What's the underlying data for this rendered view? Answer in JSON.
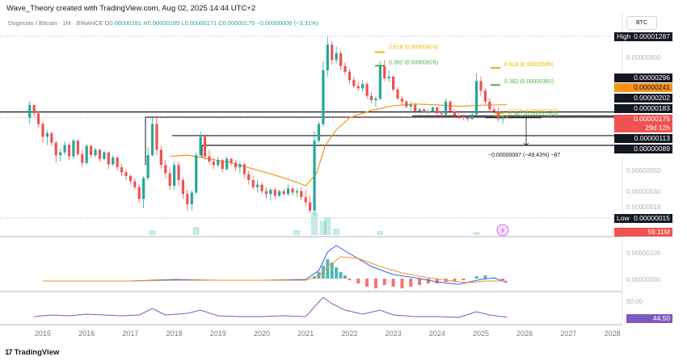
{
  "header": {
    "attribution": "Wave_Theory created with TradingView.com, Aug 02, 2025 14:44 UTC+2",
    "symbol": "Dogecoin / Bitcoin · 1M · BINANCE",
    "ohlc": [
      {
        "k": "O",
        "v": "0.00000181"
      },
      {
        "k": "H",
        "v": "0.00000185"
      },
      {
        "k": "L",
        "v": "0.00000171"
      },
      {
        "k": "C",
        "v": "0.00000175"
      }
    ],
    "change": "−0.00000006 (−3.31%)"
  },
  "currency_button": "BTC",
  "footer_logo": "TradingView",
  "colors": {
    "up": "#26a69a",
    "down": "#ef5350",
    "ema": "#f7931a",
    "macd": "#2962ff",
    "rsi": "#7e57c2",
    "fib_gold": "#f0b400",
    "fib_green": "#4caf50"
  },
  "chart_data": {
    "type": "candlestick",
    "title": "Dogecoin / Bitcoin · 1M · BINANCE",
    "scale": "log",
    "price_axis_ticks": [
      "0.00000800",
      "0.00000050",
      "0.00000030",
      "0.00000018"
    ],
    "x_ticks": [
      "2015",
      "2016",
      "2017",
      "2018",
      "2019",
      "2020",
      "2021",
      "2022",
      "2023",
      "2024",
      "2025",
      "2026",
      "2027",
      "2028"
    ],
    "price_tags": [
      {
        "label": "High",
        "value": "0.00001287",
        "style": "black"
      },
      {
        "value": "0.00000296",
        "style": "black"
      },
      {
        "value": "0.00000241",
        "style": "orange"
      },
      {
        "value": "0.00000202",
        "style": "black"
      },
      {
        "value": "0.00000183",
        "style": "black"
      },
      {
        "value": "0.00000175",
        "style": "red"
      },
      {
        "value": "29d 12h",
        "style": "red"
      },
      {
        "value": "0.00000113",
        "style": "black"
      },
      {
        "value": "0.00000089",
        "style": "black"
      },
      {
        "label": "Low",
        "value": "0.00000015",
        "style": "black"
      }
    ],
    "fib_labels": [
      {
        "text": "0.618 (0.00000874)",
        "color": "gold"
      },
      {
        "text": "0.382 (0.00000626)",
        "color": "green"
      },
      {
        "text": "0.618 (0.00000595)",
        "color": "gold"
      },
      {
        "text": "0.382 (0.00000391)",
        "color": "green"
      },
      {
        "text": "0.618 (0.00000197)",
        "color": "gold"
      },
      {
        "text": "0.382 (0.00000183)",
        "color": "green"
      }
    ],
    "measure_label": "−0.00000087 (−49.43%) −87",
    "horizontal_levels": [
      2.02e-06,
      1.83e-06,
      1.13e-06,
      8.9e-07
    ],
    "ema_value": 2.41e-06,
    "candles": [
      [
        2014.7,
        1.75e-06,
        2.62e-06,
        1.5e-06,
        2.4e-06
      ],
      [
        2014.8,
        2.4e-06,
        2.4e-06,
        1.8e-06,
        1.95e-06
      ],
      [
        2014.9,
        1.95e-06,
        2.05e-06,
        1.4e-06,
        1.5e-06
      ],
      [
        2015.0,
        1.5e-06,
        1.6e-06,
        9.5e-07,
        1.1e-06
      ],
      [
        2015.1,
        1.1e-06,
        1.3e-06,
        9e-07,
        1.2e-06
      ],
      [
        2015.2,
        1.2e-06,
        1.25e-06,
        8.8e-07,
        9.5e-07
      ],
      [
        2015.3,
        9.5e-07,
        1e-06,
        5.8e-07,
        7e-07
      ],
      [
        2015.4,
        7e-07,
        8.2e-07,
        6e-07,
        7.5e-07
      ],
      [
        2015.5,
        7.5e-07,
        9.8e-07,
        7e-07,
        9e-07
      ],
      [
        2015.6,
        9e-07,
        9.5e-07,
        6.2e-07,
        6.8e-07
      ],
      [
        2015.7,
        6.8e-07,
        1.05e-06,
        6.4e-07,
        1e-06
      ],
      [
        2015.8,
        1e-06,
        1.02e-06,
        6.8e-07,
        7.2e-07
      ],
      [
        2015.9,
        7.2e-07,
        8e-07,
        5.2e-07,
        5.8e-07
      ],
      [
        2016.0,
        5.8e-07,
        9.2e-07,
        5.5e-07,
        8.8e-07
      ],
      [
        2016.1,
        8.8e-07,
        9e-07,
        6.5e-07,
        7e-07
      ],
      [
        2016.2,
        7e-07,
        8.5e-07,
        6.6e-07,
        8e-07
      ],
      [
        2016.3,
        8e-07,
        8.2e-07,
        6e-07,
        6.4e-07
      ],
      [
        2016.4,
        6.4e-07,
        7.8e-07,
        6.2e-07,
        7.5e-07
      ],
      [
        2016.5,
        7.5e-07,
        7.6e-07,
        5e-07,
        5.6e-07
      ],
      [
        2016.6,
        5.6e-07,
        7e-07,
        5.4e-07,
        6.6e-07
      ],
      [
        2016.7,
        6.6e-07,
        6.8e-07,
        4.8e-07,
        5.2e-07
      ],
      [
        2016.8,
        5.2e-07,
        5.6e-07,
        4.2e-07,
        4.6e-07
      ],
      [
        2016.9,
        4.6e-07,
        5e-07,
        3.8e-07,
        4.2e-07
      ],
      [
        2017.0,
        4.2e-07,
        4.4e-07,
        3.4e-07,
        3.7e-07
      ],
      [
        2017.1,
        3.7e-07,
        4e-07,
        3e-07,
        3.2e-07
      ],
      [
        2017.2,
        3.2e-07,
        3.4e-07,
        2.2e-07,
        2.4e-07
      ],
      [
        2017.3,
        2.4e-07,
        4.2e-07,
        1.9e-07,
        4e-07
      ],
      [
        2017.4,
        4e-07,
        8.5e-07,
        3.8e-07,
        7e-07
      ],
      [
        2017.5,
        7e-07,
        1.75e-06,
        6.8e-07,
        1.5e-06
      ],
      [
        2017.6,
        1.5e-06,
        1.82e-06,
        7e-07,
        8e-07
      ],
      [
        2017.7,
        8e-07,
        8.8e-07,
        5e-07,
        5.5e-07
      ],
      [
        2017.8,
        5.5e-07,
        6.2e-07,
        4e-07,
        4.5e-07
      ],
      [
        2017.9,
        4.5e-07,
        5e-07,
        3e-07,
        3.3e-07
      ],
      [
        2018.0,
        3.3e-07,
        6e-07,
        3e-07,
        5.5e-07
      ],
      [
        2018.1,
        5.5e-07,
        6e-07,
        3.3e-07,
        3.8e-07
      ],
      [
        2018.2,
        3.8e-07,
        4e-07,
        2.4e-07,
        2.7e-07
      ],
      [
        2018.3,
        2.7e-07,
        3e-07,
        1.8e-07,
        2.1e-07
      ],
      [
        2018.4,
        2.1e-07,
        3e-07,
        1.8e-07,
        2.8e-07
      ],
      [
        2018.5,
        2.8e-07,
        7.5e-07,
        2.7e-07,
        7e-07
      ],
      [
        2018.6,
        7e-07,
        1.25e-06,
        6.8e-07,
        1.1e-06
      ],
      [
        2018.7,
        1.1e-06,
        1.15e-06,
        6.3e-07,
        6.8e-07
      ],
      [
        2018.8,
        6.8e-07,
        8e-07,
        5.5e-07,
        6e-07
      ],
      [
        2018.9,
        6e-07,
        6.5e-07,
        5e-07,
        5.5e-07
      ],
      [
        2019.0,
        5.5e-07,
        6.8e-07,
        5.2e-07,
        6.2e-07
      ],
      [
        2019.1,
        6.2e-07,
        6.4e-07,
        4.6e-07,
        5e-07
      ],
      [
        2019.2,
        5e-07,
        6.8e-07,
        4.8e-07,
        6.4e-07
      ],
      [
        2019.3,
        6.4e-07,
        6.6e-07,
        5.4e-07,
        5.8e-07
      ],
      [
        2019.4,
        5.8e-07,
        6.2e-07,
        4.8e-07,
        5.2e-07
      ],
      [
        2019.5,
        5.2e-07,
        6e-07,
        4.5e-07,
        5.6e-07
      ],
      [
        2019.6,
        5.6e-07,
        5.8e-07,
        4e-07,
        4.4e-07
      ],
      [
        2019.7,
        4.4e-07,
        4.8e-07,
        3.4e-07,
        3.8e-07
      ],
      [
        2019.8,
        3.8e-07,
        4.2e-07,
        3e-07,
        3.2e-07
      ],
      [
        2019.9,
        3.2e-07,
        3.8e-07,
        2.8e-07,
        3.4e-07
      ],
      [
        2020.0,
        3.4e-07,
        3.6e-07,
        2.7e-07,
        2.9e-07
      ],
      [
        2020.1,
        2.9e-07,
        3.2e-07,
        2.4e-07,
        2.7e-07
      ],
      [
        2020.2,
        2.7e-07,
        3.1e-07,
        2.3e-07,
        3e-07
      ],
      [
        2020.3,
        3e-07,
        3.2e-07,
        2.4e-07,
        2.6e-07
      ],
      [
        2020.4,
        2.6e-07,
        3e-07,
        2.5e-07,
        2.9e-07
      ],
      [
        2020.5,
        2.9e-07,
        3.1e-07,
        2.6e-07,
        2.7e-07
      ],
      [
        2020.6,
        2.7e-07,
        3.4e-07,
        2.6e-07,
        3.1e-07
      ],
      [
        2020.7,
        3.1e-07,
        3.2e-07,
        2.6e-07,
        2.8e-07
      ],
      [
        2020.8,
        2.8e-07,
        3.1e-07,
        2.5e-07,
        2.9e-07
      ],
      [
        2020.9,
        2.9e-07,
        3.2e-07,
        2.3e-07,
        2.5e-07
      ],
      [
        2021.0,
        2.5e-07,
        3e-07,
        2e-07,
        2.2e-07
      ],
      [
        2021.1,
        2.2e-07,
        2.6e-07,
        1.7e-07,
        1.8e-07
      ],
      [
        2021.2,
        1.8e-07,
        1.25e-06,
        1.6e-07,
        1e-06
      ],
      [
        2021.3,
        1e-06,
        1.6e-06,
        9.5e-07,
        1.5e-06
      ],
      [
        2021.4,
        1.5e-06,
        7e-06,
        1.4e-06,
        5.6e-06
      ],
      [
        2021.5,
        5.6e-06,
        1.287e-05,
        4.8e-06,
        1.05e-05
      ],
      [
        2021.6,
        1.05e-05,
        1.15e-05,
        6.4e-06,
        7.2e-06
      ],
      [
        2021.7,
        7.2e-06,
        1e-05,
        6.6e-06,
        8.5e-06
      ],
      [
        2021.8,
        8.5e-06,
        9e-06,
        5.6e-06,
        6.2e-06
      ],
      [
        2021.9,
        6.2e-06,
        6.8e-06,
        5e-06,
        5.4e-06
      ],
      [
        2022.0,
        5.4e-06,
        5.8e-06,
        4e-06,
        4.4e-06
      ],
      [
        2022.1,
        4.4e-06,
        4.8e-06,
        3.6e-06,
        3.8e-06
      ],
      [
        2022.2,
        3.8e-06,
        4.2e-06,
        3.4e-06,
        3.6e-06
      ],
      [
        2022.3,
        3.6e-06,
        4.4e-06,
        3.3e-06,
        4e-06
      ],
      [
        2022.4,
        4e-06,
        4.2e-06,
        2.8e-06,
        3e-06
      ],
      [
        2022.5,
        3e-06,
        3.3e-06,
        2.5e-06,
        2.7e-06
      ],
      [
        2022.6,
        2.7e-06,
        3e-06,
        2.3e-06,
        2.8e-06
      ],
      [
        2022.7,
        2.8e-06,
        7e-06,
        2.7e-06,
        6.2e-06
      ],
      [
        2022.8,
        6.2e-06,
        7.2e-06,
        4.3e-06,
        4.6e-06
      ],
      [
        2022.9,
        4.6e-06,
        5.6e-06,
        4.2e-06,
        4.8e-06
      ],
      [
        2023.0,
        4.8e-06,
        4.9e-06,
        3.3e-06,
        3.5e-06
      ],
      [
        2023.1,
        3.5e-06,
        3.7e-06,
        2.7e-06,
        2.8e-06
      ],
      [
        2023.2,
        2.8e-06,
        3e-06,
        2.4e-06,
        2.6e-06
      ],
      [
        2023.3,
        2.6e-06,
        2.7e-06,
        2.2e-06,
        2.3e-06
      ],
      [
        2023.4,
        2.3e-06,
        2.6e-06,
        2.1e-06,
        2.4e-06
      ],
      [
        2023.5,
        2.4e-06,
        2.5e-06,
        1.95e-06,
        2.05e-06
      ],
      [
        2023.6,
        2.05e-06,
        2.25e-06,
        1.95e-06,
        2.15e-06
      ],
      [
        2023.7,
        2.15e-06,
        2.2e-06,
        1.95e-06,
        2e-06
      ],
      [
        2023.8,
        2e-06,
        2.15e-06,
        1.9e-06,
        2.05e-06
      ],
      [
        2023.9,
        2.05e-06,
        2.3e-06,
        1.98e-06,
        2.25e-06
      ],
      [
        2024.0,
        2.25e-06,
        2.3e-06,
        1.9e-06,
        1.95e-06
      ],
      [
        2024.1,
        1.95e-06,
        2.05e-06,
        1.8e-06,
        1.9e-06
      ],
      [
        2024.2,
        1.9e-06,
        2.8e-06,
        1.85e-06,
        2.6e-06
      ],
      [
        2024.3,
        2.6e-06,
        2.7e-06,
        1.95e-06,
        2.05e-06
      ],
      [
        2024.4,
        2.05e-06,
        2.15e-06,
        1.78e-06,
        1.85e-06
      ],
      [
        2024.5,
        1.85e-06,
        1.95e-06,
        1.7e-06,
        1.8e-06
      ],
      [
        2024.6,
        1.8e-06,
        1.9e-06,
        1.65e-06,
        1.75e-06
      ],
      [
        2024.7,
        1.75e-06,
        1.85e-06,
        1.6e-06,
        1.7e-06
      ],
      [
        2024.8,
        1.7e-06,
        2e-06,
        1.65e-06,
        1.9e-06
      ],
      [
        2024.9,
        1.9e-06,
        5.2e-06,
        1.85e-06,
        4.3e-06
      ],
      [
        2025.0,
        4.3e-06,
        4.8e-06,
        3e-06,
        3.4e-06
      ],
      [
        2025.1,
        3.4e-06,
        3.6e-06,
        2.4e-06,
        2.6e-06
      ],
      [
        2025.2,
        2.6e-06,
        2.8e-06,
        2e-06,
        2.15e-06
      ],
      [
        2025.3,
        2.15e-06,
        2.3e-06,
        1.95e-06,
        2.05e-06
      ],
      [
        2025.4,
        2.05e-06,
        2.25e-06,
        1.6e-06,
        1.7e-06
      ],
      [
        2025.5,
        1.7e-06,
        1.85e-06,
        1.5e-06,
        1.81e-06
      ],
      [
        2025.6,
        1.81e-06,
        1.85e-06,
        1.71e-06,
        1.75e-06
      ]
    ],
    "volume_label": "59.11M",
    "macd": {
      "axis_ticks": [
        "0.00000100",
        "0.00000000"
      ],
      "histogram_note": "green bars around 2021, red bars 2022–2024"
    },
    "rsi": {
      "value": "44.50",
      "axis_ticks": [
        "80.00"
      ]
    }
  }
}
